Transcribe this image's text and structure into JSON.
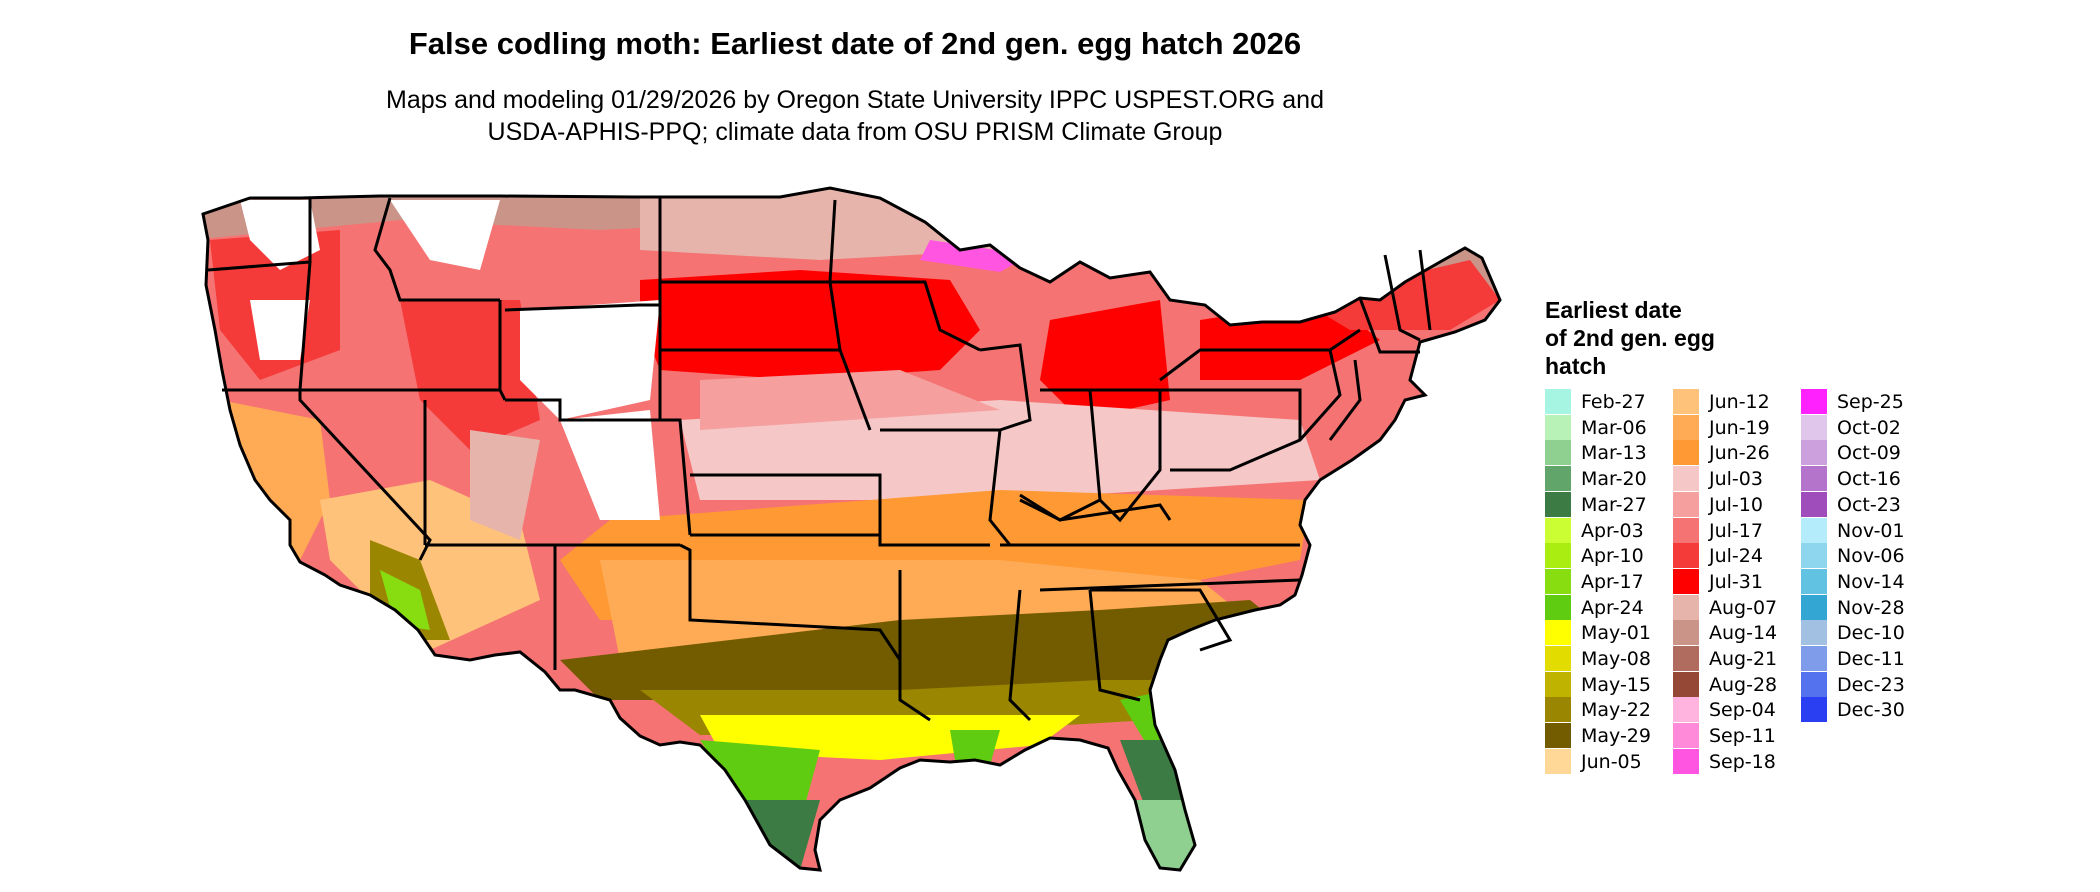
{
  "title": "False codling moth: Earliest date of 2nd gen. egg hatch 2026",
  "subtitle": {
    "line1": "Maps and modeling 01/29/2026 by Oregon State University IPPC USPEST.ORG and",
    "line2": "USDA-APHIS-PPQ; climate data from OSU PRISM Climate Group"
  },
  "legend": {
    "title_lines": [
      "Earliest date",
      "of 2nd gen. egg",
      "hatch"
    ],
    "columns": [
      [
        {
          "label": "Feb-27",
          "color": "#a6f5e3"
        },
        {
          "label": "Mar-06",
          "color": "#b9f2b6"
        },
        {
          "label": "Mar-13",
          "color": "#8fcf8f"
        },
        {
          "label": "Mar-20",
          "color": "#62a56a"
        },
        {
          "label": "Mar-27",
          "color": "#3d7b44"
        },
        {
          "label": "Apr-03",
          "color": "#ccff33"
        },
        {
          "label": "Apr-10",
          "color": "#aaee11"
        },
        {
          "label": "Apr-17",
          "color": "#88dd11"
        },
        {
          "label": "Apr-24",
          "color": "#5fcc11"
        },
        {
          "label": "May-01",
          "color": "#ffff00"
        },
        {
          "label": "May-08",
          "color": "#e3dc00"
        },
        {
          "label": "May-15",
          "color": "#bfb300"
        },
        {
          "label": "May-22",
          "color": "#9a8600"
        },
        {
          "label": "May-29",
          "color": "#735c00"
        },
        {
          "label": "Jun-05",
          "color": "#ffd796"
        }
      ],
      [
        {
          "label": "Jun-12",
          "color": "#ffc27a"
        },
        {
          "label": "Jun-19",
          "color": "#ffab55"
        },
        {
          "label": "Jun-26",
          "color": "#ff9933"
        },
        {
          "label": "Jul-03",
          "color": "#f5c7c7"
        },
        {
          "label": "Jul-10",
          "color": "#f59f9f"
        },
        {
          "label": "Jul-17",
          "color": "#f57373"
        },
        {
          "label": "Jul-24",
          "color": "#f53a3a"
        },
        {
          "label": "Jul-31",
          "color": "#ff0000"
        },
        {
          "label": "Aug-07",
          "color": "#e6b4ab"
        },
        {
          "label": "Aug-14",
          "color": "#cb9488"
        },
        {
          "label": "Aug-21",
          "color": "#b06c5e"
        },
        {
          "label": "Aug-28",
          "color": "#954835"
        },
        {
          "label": "Sep-04",
          "color": "#ffb3df"
        },
        {
          "label": "Sep-11",
          "color": "#ff8ada"
        },
        {
          "label": "Sep-18",
          "color": "#ff55e0"
        }
      ],
      [
        {
          "label": "Sep-25",
          "color": "#ff22ff"
        },
        {
          "label": "Oct-02",
          "color": "#e1c6ec"
        },
        {
          "label": "Oct-09",
          "color": "#cba0dc"
        },
        {
          "label": "Oct-16",
          "color": "#b474cb"
        },
        {
          "label": "Oct-23",
          "color": "#9e4dba"
        },
        {
          "label": "Nov-01",
          "color": "#b5ecfb"
        },
        {
          "label": "Nov-06",
          "color": "#8ed6ee"
        },
        {
          "label": "Nov-14",
          "color": "#62c2e2"
        },
        {
          "label": "Nov-28",
          "color": "#33a6d4"
        },
        {
          "label": "Dec-10",
          "color": "#a2c0e2"
        },
        {
          "label": "Dec-11",
          "color": "#7e9cea"
        },
        {
          "label": "Dec-23",
          "color": "#5471ee"
        },
        {
          "label": "Dec-30",
          "color": "#2a3ff2"
        }
      ]
    ]
  },
  "map_colors": {
    "border": "#000000",
    "no_data": "#ffffff"
  }
}
